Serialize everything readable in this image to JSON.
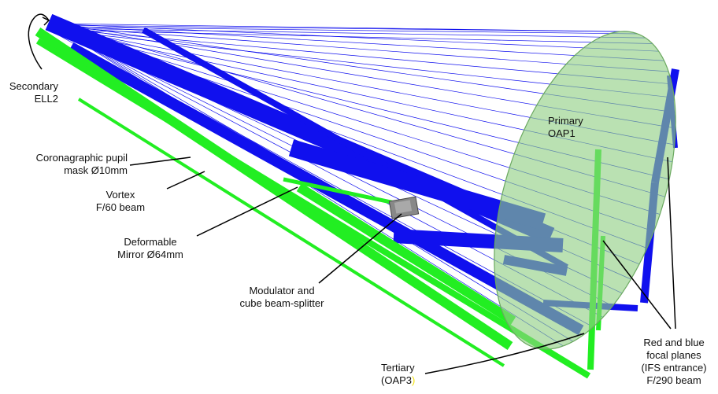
{
  "colors": {
    "blue_ray": "#1010ee",
    "green_ray": "#22ee22",
    "primary_fill": "#8fcf82",
    "primary_edge": "#6aa85f",
    "annotation_line": "#000000",
    "yellow_accent": "#f4e20a"
  },
  "labels": {
    "secondary": [
      "Secondary",
      "ELL2"
    ],
    "coronagraphic": [
      "Coronagraphic pupil",
      "mask Ø10mm"
    ],
    "vortex": [
      "Vortex",
      "F/60 beam"
    ],
    "deformable": [
      "Deformable",
      "Mirror Ø64mm"
    ],
    "modulator": [
      "Modulator and",
      "cube beam-splitter"
    ],
    "tertiary_line1": "Tertiary",
    "tertiary_line2_main": "(OAP3",
    "tertiary_line2_paren": ")",
    "primary": [
      "Primary",
      "OAP1"
    ],
    "focal": [
      "Red and blue",
      "focal planes",
      "(IFS entrance)",
      "F/290 beam"
    ]
  }
}
